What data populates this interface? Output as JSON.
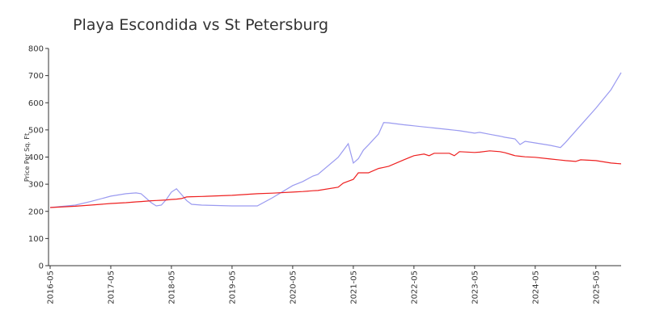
{
  "chart_data": {
    "type": "line",
    "title": "Playa Escondida vs St Petersburg",
    "ylabel": "Price Per Sq. Ft",
    "x": [
      "2016-05",
      "2016-10",
      "2017-01",
      "2017-05",
      "2017-08",
      "2017-10",
      "2017-11",
      "2018-01",
      "2018-02",
      "2018-03",
      "2018-04",
      "2018-05",
      "2018-06",
      "2018-07",
      "2018-08",
      "2018-09",
      "2018-11",
      "2019-05",
      "2019-10",
      "2020-01",
      "2020-05",
      "2020-07",
      "2020-09",
      "2020-10",
      "2021-02",
      "2021-03",
      "2021-04",
      "2021-05",
      "2021-06",
      "2021-07",
      "2021-08",
      "2021-10",
      "2021-11",
      "2021-12",
      "2022-03",
      "2022-05",
      "2022-07",
      "2022-08",
      "2022-09",
      "2022-12",
      "2023-01",
      "2023-02",
      "2023-05",
      "2023-06",
      "2023-08",
      "2023-10",
      "2023-11",
      "2024-01",
      "2024-02",
      "2024-03",
      "2024-05",
      "2024-08",
      "2024-10",
      "2024-11",
      "2025-01",
      "2025-02",
      "2025-05",
      "2025-08",
      "2025-10"
    ],
    "series": [
      {
        "color": "#9a9af0",
        "values": [
          214,
          223,
          236,
          256,
          265,
          268,
          265,
          232,
          220,
          223,
          244,
          271,
          283,
          262,
          240,
          226,
          223,
          220,
          220,
          250,
          295,
          310,
          330,
          336,
          399,
          424,
          449,
          378,
          394,
          426,
          445,
          485,
          527,
          526,
          519,
          515,
          511,
          509,
          507,
          501,
          499,
          497,
          488,
          491,
          484,
          477,
          473,
          467,
          446,
          458,
          452,
          443,
          435,
          454,
          496,
          517,
          580,
          648,
          711
        ]
      },
      {
        "color": "#ee2020",
        "values": [
          214,
          219,
          223,
          229,
          232,
          235,
          236,
          239,
          240,
          241,
          242,
          244,
          245,
          247,
          253,
          254,
          255,
          259,
          265,
          267,
          271,
          273,
          276,
          277,
          289,
          304,
          311,
          318,
          342,
          342,
          342,
          358,
          362,
          366,
          390,
          405,
          411,
          405,
          414,
          414,
          405,
          420,
          417,
          418,
          423,
          420,
          416,
          405,
          403,
          401,
          399,
          393,
          389,
          387,
          384,
          390,
          387,
          378,
          375
        ]
      }
    ],
    "xlim": [
      "2016-05",
      "2025-10"
    ],
    "xticks": [
      "2016-05",
      "2017-05",
      "2018-05",
      "2019-05",
      "2020-05",
      "2021-05",
      "2022-05",
      "2023-05",
      "2024-05",
      "2025-05"
    ],
    "ylim": [
      0,
      800
    ],
    "yticks": [
      0,
      100,
      200,
      300,
      400,
      500,
      600,
      700,
      800
    ],
    "grid": false
  }
}
